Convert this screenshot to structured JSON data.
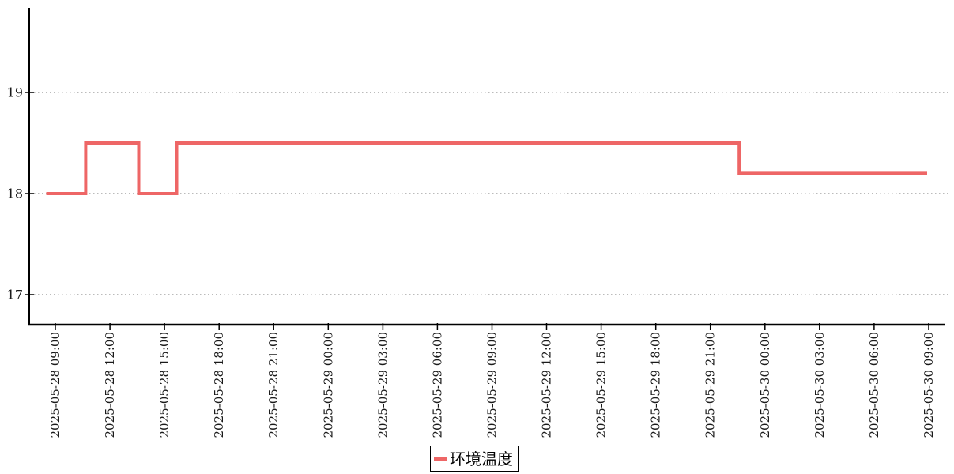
{
  "chart_data": {
    "type": "line",
    "step": "after",
    "series": [
      {
        "name": "环境温度",
        "color": "#ee6666",
        "points": [
          {
            "t": "2025-05-28 08:30",
            "v": 18.0
          },
          {
            "t": "2025-05-28 10:40",
            "v": 18.5
          },
          {
            "t": "2025-05-28 13:35",
            "v": 18.0
          },
          {
            "t": "2025-05-28 15:40",
            "v": 18.5
          },
          {
            "t": "2025-05-29 22:35",
            "v": 18.2
          },
          {
            "t": "2025-05-30 08:55",
            "v": 18.2
          }
        ]
      }
    ],
    "x_ticks": [
      "2025-05-28 09:00",
      "2025-05-28 12:00",
      "2025-05-28 15:00",
      "2025-05-28 18:00",
      "2025-05-28 21:00",
      "2025-05-29 00:00",
      "2025-05-29 03:00",
      "2025-05-29 06:00",
      "2025-05-29 09:00",
      "2025-05-29 12:00",
      "2025-05-29 15:00",
      "2025-05-29 18:00",
      "2025-05-29 21:00",
      "2025-05-30 00:00",
      "2025-05-30 03:00",
      "2025-05-30 06:00",
      "2025-05-30 09:00"
    ],
    "y_ticks": [
      19,
      18,
      17
    ],
    "ylim": [
      16.7,
      19.85
    ],
    "grid": "horizontal-dotted",
    "legend_position": "bottom-center",
    "colors": {
      "axis": "#000000",
      "grid": "#777777",
      "tick_text": "#1a1a1a",
      "legend_border": "#000000",
      "background": "#ffffff"
    }
  }
}
